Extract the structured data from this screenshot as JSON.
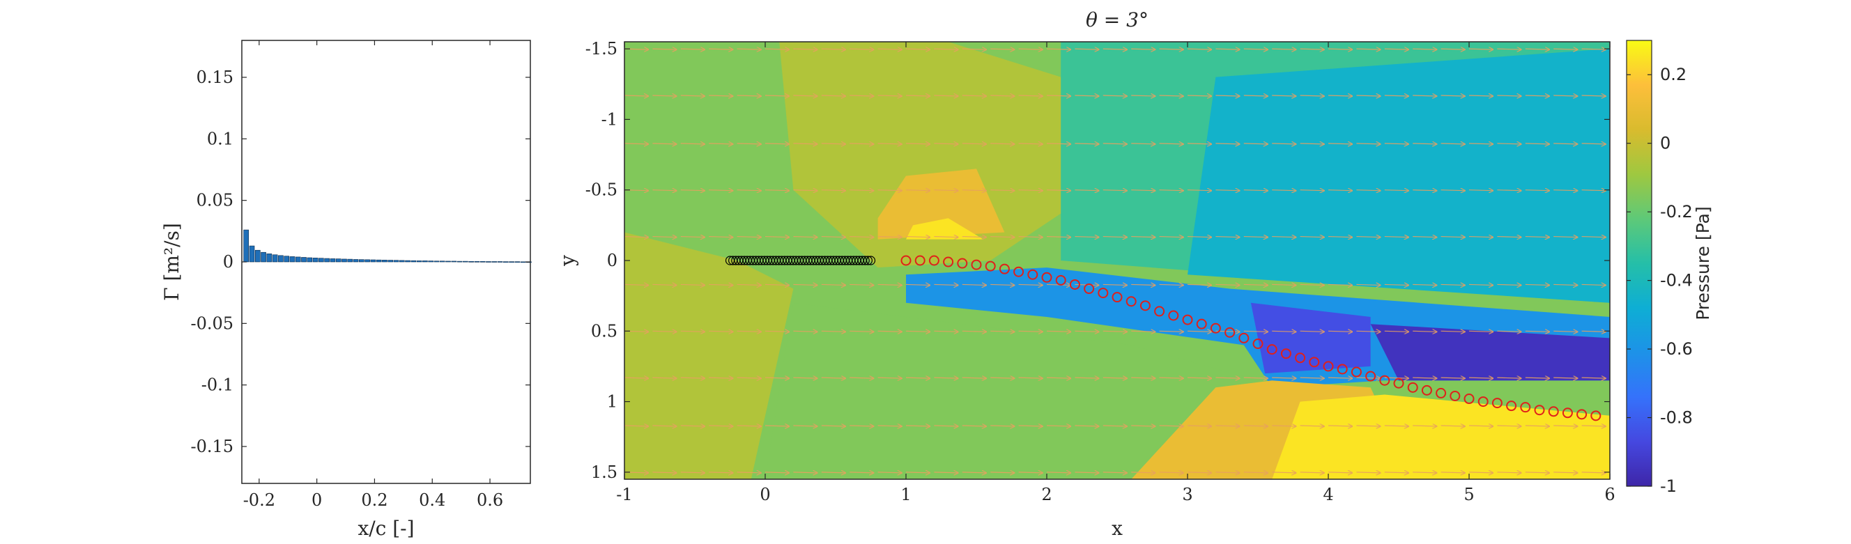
{
  "chart_data": [
    {
      "type": "bar",
      "title": "",
      "xlabel": "x/c [-]",
      "ylabel": "Γ [m²/s]",
      "xlim": [
        -0.26,
        0.74
      ],
      "ylim": [
        -0.18,
        0.18
      ],
      "xticks": [
        -0.2,
        0,
        0.2,
        0.4,
        0.6
      ],
      "xtick_labels": [
        "-0.2",
        "0",
        "0.2",
        "0.4",
        "0.6"
      ],
      "yticks": [
        0.15,
        0.1,
        0.05,
        0,
        -0.05,
        -0.1,
        -0.15
      ],
      "ytick_labels": [
        "0.15",
        "0.1",
        "0.05",
        "0",
        "-0.05",
        "-0.1",
        "-0.15"
      ],
      "grid": false,
      "bar_color": "#1f6fb8",
      "x": [
        -0.245,
        -0.225,
        -0.205,
        -0.185,
        -0.165,
        -0.145,
        -0.125,
        -0.105,
        -0.085,
        -0.065,
        -0.045,
        -0.025,
        -0.005,
        0.015,
        0.035,
        0.055,
        0.075,
        0.095,
        0.115,
        0.135,
        0.155,
        0.175,
        0.195,
        0.215,
        0.235,
        0.255,
        0.275,
        0.295,
        0.315,
        0.335,
        0.355,
        0.375,
        0.395,
        0.415,
        0.435,
        0.455,
        0.475,
        0.495,
        0.515,
        0.535,
        0.555,
        0.575,
        0.595,
        0.615,
        0.635,
        0.655,
        0.675,
        0.695,
        0.715,
        0.735
      ],
      "values": [
        0.026,
        0.013,
        0.0095,
        0.0078,
        0.0066,
        0.0058,
        0.0052,
        0.0047,
        0.0043,
        0.004,
        0.0037,
        0.0034,
        0.0032,
        0.003,
        0.0028,
        0.0026,
        0.0025,
        0.0023,
        0.0022,
        0.002,
        0.0019,
        0.0018,
        0.0017,
        0.0016,
        0.0015,
        0.0014,
        0.0013,
        0.0012,
        0.0011,
        0.001,
        0.0009,
        0.0009,
        0.0008,
        0.0007,
        0.0007,
        0.0006,
        0.0006,
        0.0005,
        0.0005,
        0.0004,
        0.0004,
        0.0004,
        0.0003,
        0.0003,
        0.0003,
        0.0002,
        0.0002,
        0.0002,
        0.0001,
        0.0001
      ]
    },
    {
      "type": "heatmap",
      "title": "θ = 3°",
      "xlabel": "x",
      "ylabel": "y",
      "xlim": [
        -1,
        6
      ],
      "ylim": [
        -1.55,
        1.55
      ],
      "y_reversed": true,
      "xticks": [
        -1,
        0,
        1,
        2,
        3,
        4,
        5,
        6
      ],
      "xtick_labels": [
        "-1",
        "0",
        "1",
        "2",
        "3",
        "4",
        "5",
        "6"
      ],
      "yticks": [
        -1.5,
        -1,
        -0.5,
        0,
        0.5,
        1,
        1.5
      ],
      "ytick_labels": [
        "-1.5",
        "-1",
        "-0.5",
        "0",
        "0.5",
        "1",
        "1.5"
      ],
      "colorbar": {
        "label": "Pressure [Pa]",
        "range": [
          -1,
          0.3
        ],
        "ticks": [
          0.2,
          0,
          -0.2,
          -0.4,
          -0.6,
          -0.8,
          -1
        ],
        "tick_labels": [
          "0.2",
          "0",
          "-0.2",
          "-0.4",
          "-0.6",
          "-0.8",
          "-1"
        ],
        "colormap": "parula",
        "placement": "right"
      },
      "background_value": -0.15,
      "pressure_regions": [
        {
          "name": "upstream-lower",
          "value": -0.05,
          "polygon": [
            [
              -1,
              -0.2
            ],
            [
              -0.2,
              0.0
            ],
            [
              0.2,
              0.2
            ],
            [
              -0.1,
              1.55
            ],
            [
              -1,
              1.55
            ]
          ]
        },
        {
          "name": "upper-bulge",
          "value": -0.05,
          "polygon": [
            [
              0.1,
              -1.55
            ],
            [
              1.3,
              -1.55
            ],
            [
              2.1,
              -1.3
            ],
            [
              2.2,
              -0.4
            ],
            [
              1.6,
              0.0
            ],
            [
              0.8,
              0.05
            ],
            [
              0.2,
              -0.5
            ]
          ]
        },
        {
          "name": "high-pressure-bubble",
          "value": 0.1,
          "polygon": [
            [
              0.8,
              -0.3
            ],
            [
              1.0,
              -0.6
            ],
            [
              1.5,
              -0.65
            ],
            [
              1.7,
              -0.2
            ],
            [
              0.8,
              -0.15
            ]
          ]
        },
        {
          "name": "high-pressure-core",
          "value": 0.25,
          "polygon": [
            [
              1.05,
              -0.25
            ],
            [
              1.3,
              -0.3
            ],
            [
              1.55,
              -0.15
            ],
            [
              1.0,
              -0.15
            ]
          ]
        },
        {
          "name": "upper-right-cyan",
          "value": -0.3,
          "polygon": [
            [
              2.1,
              -1.55
            ],
            [
              6,
              -1.55
            ],
            [
              6,
              0.3
            ],
            [
              2.1,
              0.0
            ]
          ]
        },
        {
          "name": "upper-right-deep",
          "value": -0.45,
          "polygon": [
            [
              3.2,
              -1.3
            ],
            [
              6,
              -1.5
            ],
            [
              6,
              0.3
            ],
            [
              3.0,
              0.1
            ]
          ]
        },
        {
          "name": "wake-blue",
          "value": -0.6,
          "polygon": [
            [
              1.0,
              0.1
            ],
            [
              2.0,
              0.05
            ],
            [
              3.3,
              0.2
            ],
            [
              6,
              0.4
            ],
            [
              6,
              0.85
            ],
            [
              4.4,
              0.85
            ],
            [
              3.6,
              0.9
            ],
            [
              3.4,
              0.6
            ],
            [
              2.0,
              0.4
            ],
            [
              1.0,
              0.3
            ]
          ]
        },
        {
          "name": "wake-low-1",
          "value": -0.85,
          "polygon": [
            [
              3.45,
              0.3
            ],
            [
              4.3,
              0.4
            ],
            [
              4.3,
              0.75
            ],
            [
              3.55,
              0.8
            ]
          ]
        },
        {
          "name": "wake-low-2",
          "value": -0.95,
          "polygon": [
            [
              4.3,
              0.45
            ],
            [
              6,
              0.55
            ],
            [
              6,
              0.85
            ],
            [
              4.5,
              0.85
            ]
          ]
        },
        {
          "name": "lower-green",
          "value": -0.15,
          "polygon": [
            [
              0.2,
              0.3
            ],
            [
              2.6,
              0.6
            ],
            [
              3.5,
              0.85
            ],
            [
              3.0,
              1.55
            ],
            [
              0.0,
              1.55
            ]
          ]
        },
        {
          "name": "lower-orange",
          "value": 0.1,
          "polygon": [
            [
              2.6,
              1.55
            ],
            [
              3.2,
              0.9
            ],
            [
              3.6,
              0.85
            ],
            [
              4.3,
              0.9
            ],
            [
              4.6,
              1.55
            ]
          ]
        },
        {
          "name": "lower-yellow",
          "value": 0.25,
          "polygon": [
            [
              3.6,
              1.55
            ],
            [
              3.8,
              1.0
            ],
            [
              4.4,
              0.95
            ],
            [
              6,
              1.1
            ],
            [
              6,
              1.55
            ]
          ]
        }
      ],
      "plate": {
        "x_start": -0.25,
        "x_end": 0.75,
        "y": 0,
        "marker": "black-circles",
        "n": 50
      },
      "wake_vortices": {
        "marker": "red-circles",
        "x": [
          1.0,
          1.1,
          1.2,
          1.3,
          1.4,
          1.5,
          1.6,
          1.7,
          1.8,
          1.9,
          2.0,
          2.1,
          2.2,
          2.3,
          2.4,
          2.5,
          2.6,
          2.7,
          2.8,
          2.9,
          3.0,
          3.1,
          3.2,
          3.3,
          3.4,
          3.5,
          3.6,
          3.7,
          3.8,
          3.9,
          4.0,
          4.1,
          4.2,
          4.3,
          4.4,
          4.5,
          4.6,
          4.7,
          4.8,
          4.9,
          5.0,
          5.1,
          5.2,
          5.3,
          5.4,
          5.5,
          5.6,
          5.7,
          5.8,
          5.9
        ],
        "y": [
          0.0,
          0.0,
          0.0,
          0.01,
          0.02,
          0.03,
          0.04,
          0.06,
          0.08,
          0.1,
          0.12,
          0.14,
          0.17,
          0.2,
          0.23,
          0.26,
          0.29,
          0.32,
          0.36,
          0.39,
          0.42,
          0.45,
          0.48,
          0.51,
          0.55,
          0.59,
          0.63,
          0.66,
          0.69,
          0.72,
          0.75,
          0.77,
          0.79,
          0.82,
          0.85,
          0.87,
          0.9,
          0.92,
          0.94,
          0.96,
          0.98,
          1.0,
          1.01,
          1.03,
          1.04,
          1.06,
          1.07,
          1.08,
          1.09,
          1.1
        ]
      },
      "quiver": {
        "color": "#e8a060",
        "rows_y": [
          -1.5,
          -1.17,
          -0.83,
          -0.5,
          -0.17,
          0.17,
          0.5,
          0.83,
          1.17,
          1.5
        ],
        "cols_x": [
          -1,
          -0.8,
          -0.6,
          -0.4,
          -0.2,
          0,
          0.2,
          0.4,
          0.6,
          0.8,
          1,
          1.2,
          1.4,
          1.6,
          1.8,
          2,
          2.2,
          2.4,
          2.6,
          2.8,
          3,
          3.2,
          3.4,
          3.6,
          3.8,
          4,
          4.2,
          4.4,
          4.6,
          4.8,
          5,
          5.2,
          5.4,
          5.6,
          5.8,
          6
        ]
      }
    }
  ]
}
